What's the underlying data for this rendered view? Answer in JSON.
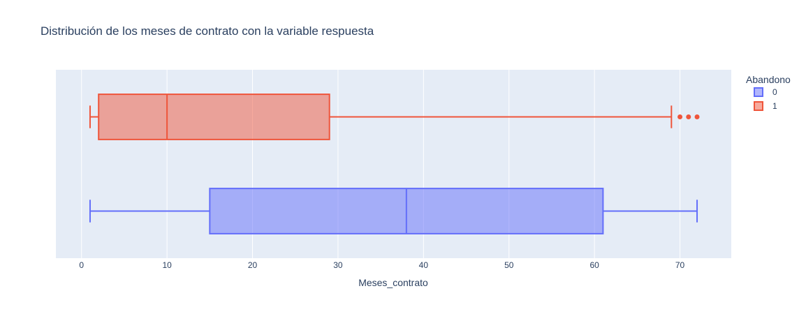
{
  "chart_data": {
    "type": "box",
    "title": "Distribución de los meses de contrato con la variable respuesta",
    "xlabel": "Meses_contrato",
    "ylabel": "",
    "orientation": "horizontal",
    "xlim": [
      -3,
      76
    ],
    "x_ticks": [
      0,
      10,
      20,
      30,
      40,
      50,
      60,
      70
    ],
    "grid": true,
    "legend": {
      "title": "Abandono",
      "placement": "top-right"
    },
    "series": [
      {
        "name": "0",
        "color": "#636efa",
        "min": 1,
        "q1": 15,
        "median": 38,
        "q3": 61,
        "max": 72,
        "outliers": []
      },
      {
        "name": "1",
        "color": "#ef553b",
        "min": 1,
        "q1": 2,
        "median": 10,
        "q3": 29,
        "max": 69,
        "outliers": [
          70,
          71,
          72
        ]
      }
    ]
  }
}
